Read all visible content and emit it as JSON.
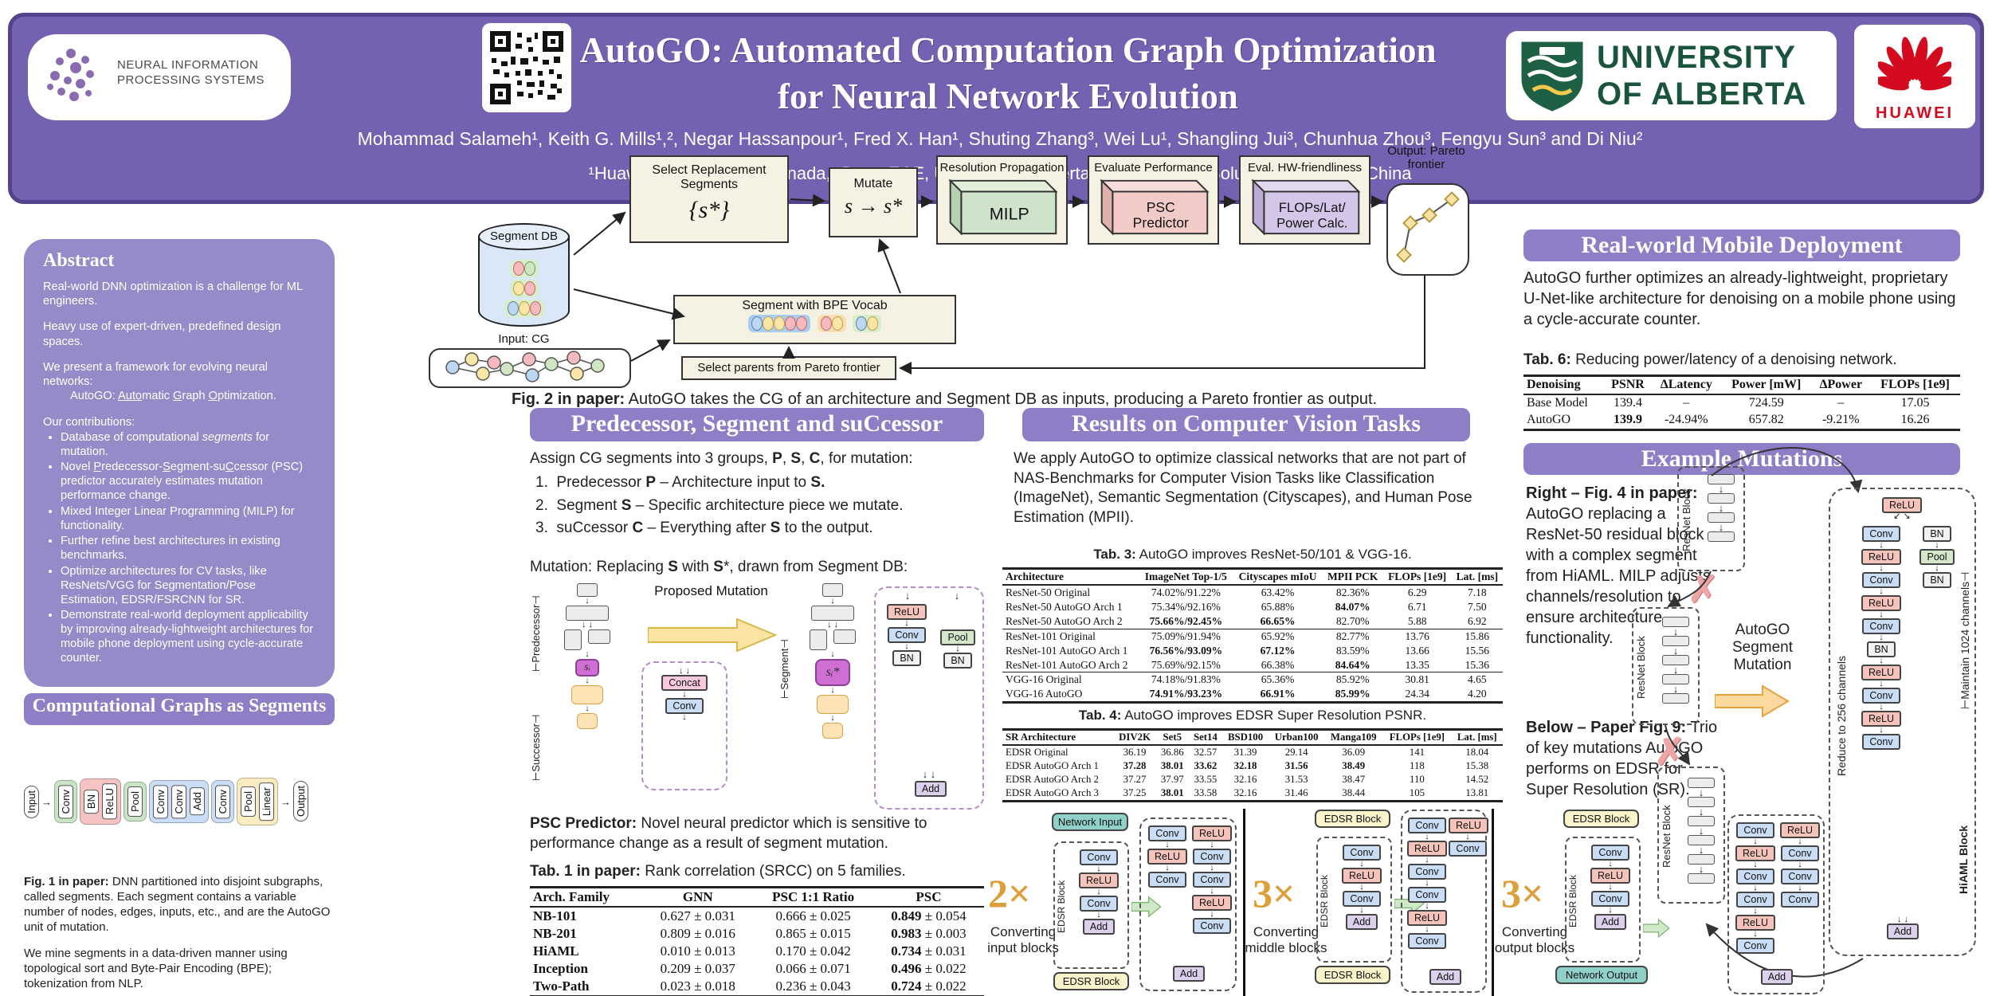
{
  "header": {
    "title_line1": "AutoGO: Automated Computation Graph Optimization",
    "title_line2": "for Neural Network Evolution",
    "authors": "Mohammad Salameh¹, Keith G. Mills¹,², Negar Hassanpour¹, Fred X. Han¹, Shuting Zhang³, Wei Lu¹, Shangling Jui³, Chunhua Zhou³, Fengyu Sun³ and Di Niu²",
    "affiliations": "¹Huawei Technologies Canada, ²Dept. ECE, University of Alberta, ³Huawei Kirin Solution, Shanghai, China",
    "neurips_line1": "NEURAL INFORMATION",
    "neurips_line2": "PROCESSING SYSTEMS",
    "ualberta_line1": "UNIVERSITY",
    "ualberta_line2": "OF ALBERTA",
    "huawei_label": "HUAWEI"
  },
  "abstract": {
    "heading": "Abstract",
    "p1": "Real-world DNN optimization is a challenge for ML engineers.",
    "p2": "Heavy use of expert-driven, predefined design spaces.",
    "p3a": "We present a framework for evolving neural networks:",
    "p3b": "AutoGO: __Auto__matic __G__raph __O__ptimization.",
    "contrib": "Our contributions:",
    "bullets": [
      "Database of computational *segments* for mutation.",
      "Novel __P__redecessor-__S__egment-su__C__cessor (PSC) predictor accurately estimates mutation performance change.",
      "Mixed Integer Linear Programming (MILP) for functionality.",
      "Further refine best architectures in existing benchmarks.",
      "Optimize architectures for CV tasks, like ResNets/VGG for Segmentation/Pose Estimation, EDSR/FSRCNN for SR.",
      "Demonstrate real-world deployment applicability by improving already-lightweight architectures for mobile phone deployment using cycle-accurate counter."
    ]
  },
  "cg": {
    "banner": "Computational Graphs as Segments",
    "nodes": [
      "Input",
      "Conv",
      "BN",
      "ReLU",
      "Pool",
      "Conv",
      "Conv",
      "Add",
      "Conv",
      "Pool",
      "Linear",
      "Output"
    ],
    "fig1_caption": "**Fig. 1 in paper:** DNN partitioned into disjoint subgraphs, called segments. Each segment contains a variable number of nodes, edges, inputs, etc., and are the AutoGO unit of mutation.",
    "mining": "We mine segments in a data-driven manner using topological sort and Byte-Pair Encoding (BPE); tokenization from NLP."
  },
  "fig2": {
    "segment_db": "Segment DB",
    "input_cg": "Input: CG",
    "select_box": "Select Replacement Segments",
    "select_set": "{s*}",
    "mutate": "Mutate",
    "mutate_expr": "s → s*",
    "bpe": "Segment with BPE Vocab",
    "select_parents": "Select parents from Pareto frontier",
    "milp_label": "Resolution Propagation",
    "milp": "MILP",
    "psc_label": "Evaluate Performance",
    "psc": "PSC Predictor",
    "hw_label": "Eval. HW-friendliness",
    "hw": "FLOPs/Lat/ Power Calc.",
    "output_label": "Output: Pareto frontier",
    "caption": "**Fig. 2 in paper:** AutoGO takes the CG of an architecture and Segment DB as inputs, producing a Pareto frontier as output."
  },
  "psc": {
    "banner": "Predecessor, Segment and suCcessor",
    "intro": "Assign CG segments into 3 groups, **P**, **S**, **C**, for mutation:",
    "items": [
      "Predecessor **P** – Architecture input to **S.**",
      "Segment **S** – Specific architecture piece we mutate.",
      "suCcessor **C** – Everything after **S** to the output."
    ],
    "mutation_line": "Mutation: Replacing **S** with **S***, drawn from Segment DB:",
    "proposed": "Proposed Mutation",
    "predecessor_label": "⊢Predecessor⊣",
    "successor_label": "⊢Successor⊣",
    "segment_label": "⊢Segment⊣",
    "si": "sᵢ",
    "si_star": "sᵢ*",
    "d1_chain": [
      "Concat",
      "Conv"
    ],
    "d2_left": [
      "ReLU",
      "Conv",
      "BN"
    ],
    "d2_right": [
      "Pool",
      "BN"
    ],
    "d2_add": "Add",
    "psc_text": "**PSC Predictor:** Novel neural predictor which is sensitive to performance change as a result of segment mutation.",
    "tab1_caption": "**Tab. 1 in paper:** Rank correlation (SRCC) on 5 families.",
    "table1": {
      "headers": [
        "Arch. Family",
        "GNN",
        "PSC 1:1 Ratio",
        "PSC"
      ],
      "rows": [
        [
          "**NB-101**",
          "0.627 ± 0.031",
          "0.666 ± 0.025",
          "**0.849** ± 0.054"
        ],
        [
          "**NB-201**",
          "0.809 ± 0.016",
          "0.865 ± 0.015",
          "**0.983** ± 0.003"
        ],
        [
          "**HiAML**",
          "0.010 ± 0.013",
          "0.170 ± 0.042",
          "**0.734** ± 0.031"
        ],
        [
          "**Inception**",
          "0.209 ± 0.037",
          "0.066 ± 0.071",
          "**0.496** ± 0.022"
        ],
        [
          "**Two-Path**",
          "0.023 ± 0.018",
          "0.236 ± 0.043",
          "**0.724** ± 0.022"
        ]
      ]
    }
  },
  "results": {
    "banner": "Results on Computer Vision Tasks",
    "intro": "We apply AutoGO to optimize classical networks that are not part of NAS-Benchmarks for Computer Vision Tasks like Classification (ImageNet), Semantic Segmentation (Cityscapes), and Human Pose Estimation (MPII).",
    "tab3_caption": "**Tab. 3:** AutoGO improves ResNet-50/101 & VGG-16.",
    "table3": {
      "headers": [
        "Architecture",
        "ImageNet Top-1/5",
        "Cityscapes mIoU",
        "MPII PCK",
        "FLOPs [1e9]",
        "Lat. [ms]"
      ],
      "group_starts": [
        3,
        6
      ],
      "rows": [
        [
          "ResNet-50 Original",
          "74.02%/91.22%",
          "63.42%",
          "82.36%",
          "6.29",
          "7.18"
        ],
        [
          "ResNet-50 AutoGO Arch 1",
          "75.34%/92.16%",
          "65.88%",
          "**84.07%**",
          "6.71",
          "7.50"
        ],
        [
          "ResNet-50 AutoGO Arch 2",
          "**75.66%/92.45%**",
          "**66.65%**",
          "82.70%",
          "5.88",
          "6.92"
        ],
        [
          "ResNet-101 Original",
          "75.09%/91.94%",
          "65.92%",
          "82.77%",
          "13.76",
          "15.86"
        ],
        [
          "ResNet-101 AutoGO Arch 1",
          "**76.56%/93.09%**",
          "**67.12%**",
          "83.59%",
          "13.66",
          "15.56"
        ],
        [
          "ResNet-101 AutoGO Arch 2",
          "75.69%/92.15%",
          "66.38%",
          "**84.64%**",
          "13.35",
          "15.36"
        ],
        [
          "VGG-16 Original",
          "74.18%/91.83%",
          "65.36%",
          "85.92%",
          "30.81",
          "4.65"
        ],
        [
          "VGG-16 AutoGO",
          "**74.91%/93.23%**",
          "**66.91%**",
          "**85.99%**",
          "24.34",
          "4.20"
        ]
      ]
    },
    "tab4_caption": "**Tab. 4:** AutoGO improves EDSR Super Resolution PSNR.",
    "table4": {
      "headers": [
        "SR Architecture",
        "DIV2K",
        "Set5",
        "Set14",
        "BSD100",
        "Urban100",
        "Manga109",
        "FLOPs [1e9]",
        "Lat. [ms]"
      ],
      "rows": [
        [
          "EDSR Original",
          "36.19",
          "36.86",
          "32.57",
          "31.39",
          "29.14",
          "36.09",
          "141",
          "18.04"
        ],
        [
          "EDSR AutoGO Arch 1",
          "**37.28**",
          "**38.01**",
          "**33.62**",
          "**32.18**",
          "**31.56**",
          "**38.49**",
          "118",
          "15.38"
        ],
        [
          "EDSR AutoGO Arch 2",
          "37.27",
          "37.97",
          "33.55",
          "32.16",
          "31.53",
          "38.47",
          "110",
          "14.52"
        ],
        [
          "EDSR AutoGO Arch 3",
          "37.25",
          "**38.01**",
          "33.58",
          "32.16",
          "31.46",
          "38.44",
          "105",
          "13.81"
        ]
      ]
    }
  },
  "deploy": {
    "banner": "Real-world Mobile Deployment",
    "text": "AutoGO further optimizes an already-lightweight, proprietary U-Net-like architecture for denoising on a mobile phone using a cycle-accurate counter.",
    "tab6_caption": "**Tab. 6:** Reducing power/latency of a denoising network.",
    "table6": {
      "headers": [
        "Denoising",
        "PSNR",
        "ΔLatency",
        "Power [mW]",
        "ΔPower",
        "FLOPs [1e9]"
      ],
      "rows": [
        [
          "Base Model",
          "139.4",
          "–",
          "724.59",
          "–",
          "17.05"
        ],
        [
          "AutoGO",
          "**139.9**",
          "-24.94%",
          "657.82",
          "-9.21%",
          "16.26"
        ]
      ]
    }
  },
  "mutations": {
    "banner": "Example Mutations",
    "right_text": "**Right – Fig. 4 in paper:** AutoGO replacing a ResNet-50 residual block with a complex segment from HiAML. MILP adjusts channels/resolution to ensure architecture functionality.",
    "below_text": "**Below – Paper Fig. 9:** Trio of key mutations AutoGO performs on EDSR for Super Resolution (SR).",
    "resnet_label": "ResNet Block",
    "autogo_mutation": "AutoGO Segment Mutation",
    "hiaml": {
      "top": "ReLU",
      "left": [
        "Conv",
        "ReLU",
        "Conv",
        "ReLU",
        "Conv",
        "BN",
        "ReLU",
        "Conv",
        "ReLU",
        "Conv"
      ],
      "right": [
        "BN",
        "Pool",
        "BN"
      ],
      "add": "Add",
      "left_label": "Reduce to 256 channels",
      "right_label": "⊢Maintain 1024 channels⊣",
      "block_label": "HiAML Block"
    }
  },
  "strip": {
    "panels": [
      {
        "mult": "2×",
        "caption": "Converting input blocks",
        "top": "Network Input",
        "side": "EDSR Block",
        "chain": [
          "Conv",
          "ReLU",
          "Conv",
          "Add"
        ],
        "bottom": "EDSR Block",
        "result_left": [
          "Conv",
          "ReLU",
          "Conv"
        ],
        "result_right": [
          "ReLU",
          "Conv",
          "Conv",
          "ReLU",
          "Conv"
        ],
        "result_add": "Add"
      },
      {
        "mult": "3×",
        "caption": "Converting middle blocks",
        "top": "EDSR Block",
        "side": "EDSR Block",
        "chain": [
          "Conv",
          "ReLU",
          "Conv",
          "Add"
        ],
        "bottom": "EDSR Block",
        "result_left": [
          "Conv",
          "ReLU",
          "Conv",
          "Conv",
          "ReLU",
          "Conv"
        ],
        "result_right": [
          "ReLU",
          "Conv"
        ],
        "result_add": "Add"
      },
      {
        "mult": "3×",
        "caption": "Converting output blocks",
        "top": "EDSR Block",
        "side": "EDSR Block",
        "chain": [
          "Conv",
          "ReLU",
          "Conv",
          "Add"
        ],
        "bottom": "Network Output",
        "result_left": [
          "Conv",
          "ReLU",
          "Conv",
          "Conv",
          "ReLU",
          "Conv"
        ],
        "result_right": [
          "ReLU",
          "Conv",
          "Conv",
          "Conv"
        ],
        "result_add": "Add"
      }
    ]
  }
}
